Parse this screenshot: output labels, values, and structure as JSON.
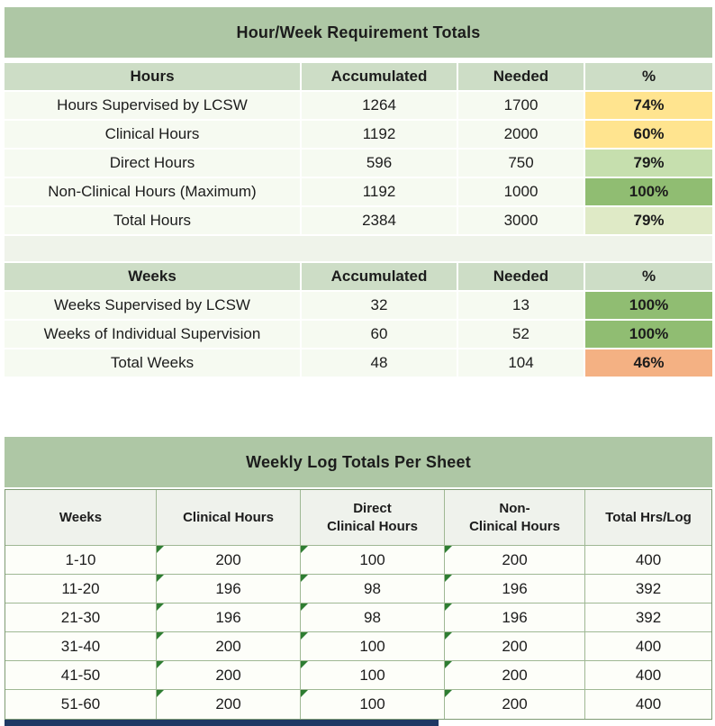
{
  "requirement_table": {
    "title": "Hour/Week Requirement Totals",
    "hours_headers": [
      "Hours",
      "Accumulated",
      "Needed",
      "%"
    ],
    "hours_rows": [
      {
        "label": "Hours Supervised by LCSW",
        "accumulated": "1264",
        "needed": "1700",
        "percent": "74%",
        "percent_color": "#ffe48f"
      },
      {
        "label": "Clinical Hours",
        "accumulated": "1192",
        "needed": "2000",
        "percent": "60%",
        "percent_color": "#ffe48f"
      },
      {
        "label": "Direct Hours",
        "accumulated": "596",
        "needed": "750",
        "percent": "79%",
        "percent_color": "#c6dfae"
      },
      {
        "label": "Non-Clinical Hours (Maximum)",
        "accumulated": "1192",
        "needed": "1000",
        "percent": "100%",
        "percent_color": "#90bd72"
      },
      {
        "label": "Total Hours",
        "accumulated": "2384",
        "needed": "3000",
        "percent": "79%",
        "percent_color": "#dfeac6"
      }
    ],
    "weeks_headers": [
      "Weeks",
      "Accumulated",
      "Needed",
      "%"
    ],
    "weeks_rows": [
      {
        "label": "Weeks Supervised by LCSW",
        "accumulated": "32",
        "needed": "13",
        "percent": "100%",
        "percent_color": "#90bd72"
      },
      {
        "label": "Weeks of Individual Supervision",
        "accumulated": "60",
        "needed": "52",
        "percent": "100%",
        "percent_color": "#90bd72"
      },
      {
        "label": "Total Weeks",
        "accumulated": "48",
        "needed": "104",
        "percent": "46%",
        "percent_color": "#f4b183"
      }
    ]
  },
  "weekly_log_table": {
    "title": "Weekly Log Totals Per Sheet",
    "headers": [
      "Weeks",
      "Clinical Hours",
      "Direct\nClinical Hours",
      "Non-\nClinical Hours",
      "Total Hrs/Log"
    ],
    "rows": [
      {
        "weeks": "1-10",
        "clinical_hours": "200",
        "direct_clinical_hours": "100",
        "non_clinical_hours": "200",
        "total_hrs_log": "400"
      },
      {
        "weeks": "11-20",
        "clinical_hours": "196",
        "direct_clinical_hours": "98",
        "non_clinical_hours": "196",
        "total_hrs_log": "392"
      },
      {
        "weeks": "21-30",
        "clinical_hours": "196",
        "direct_clinical_hours": "98",
        "non_clinical_hours": "196",
        "total_hrs_log": "392"
      },
      {
        "weeks": "31-40",
        "clinical_hours": "200",
        "direct_clinical_hours": "100",
        "non_clinical_hours": "200",
        "total_hrs_log": "400"
      },
      {
        "weeks": "41-50",
        "clinical_hours": "200",
        "direct_clinical_hours": "100",
        "non_clinical_hours": "200",
        "total_hrs_log": "400"
      },
      {
        "weeks": "51-60",
        "clinical_hours": "200",
        "direct_clinical_hours": "100",
        "non_clinical_hours": "200",
        "total_hrs_log": "400"
      }
    ]
  },
  "colors": {
    "section_title_bg": "#aec7a5",
    "column_header_bg": "#cdddc6",
    "partial_row_navy": "#1f3864"
  }
}
